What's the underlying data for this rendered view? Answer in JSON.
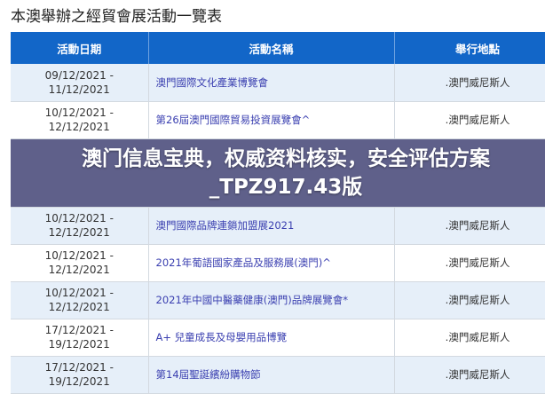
{
  "page_title": "本澳舉辦之經貿會展活動一覽表",
  "table": {
    "headers": [
      "活動日期",
      "活動名稱",
      "舉行地點"
    ],
    "rows": [
      {
        "start": "09/12/2021 -",
        "end": "11/12/2021",
        "name": "澳門國際文化產業博覽會",
        "location": ".澳門威尼斯人"
      },
      {
        "start": "10/12/2021 -",
        "end": "12/12/2021",
        "name": "第26屆澳門國際貿易投資展覽會^",
        "location": ".澳門威尼斯人"
      },
      {
        "start": "10/12/2021 -",
        "end": "12/12/2021",
        "name": "澳門國際品牌連鎖加盟展2021",
        "location": ".澳門威尼斯人"
      },
      {
        "start": "10/12/2021 -",
        "end": "12/12/2021",
        "name": "2021年葡語國家產品及服務展(澳門)^",
        "location": ".澳門威尼斯人"
      },
      {
        "start": "10/12/2021 -",
        "end": "12/12/2021",
        "name": "2021年中國中醫藥健康(澳門)品牌展覽會*",
        "location": ".澳門威尼斯人"
      },
      {
        "start": "17/12/2021 -",
        "end": "19/12/2021",
        "name": "A+ 兒童成長及母嬰用品博覽",
        "location": ".澳門威尼斯人"
      },
      {
        "start": "17/12/2021 -",
        "end": "19/12/2021",
        "name": "第14屆聖誕繽紛購物節",
        "location": ".澳門威尼斯人"
      }
    ]
  },
  "banner": {
    "line1": "澳门信息宝典，权威资料核实，安全评估方案",
    "line2": "_TPZ917.43版"
  },
  "colors": {
    "header_bg": "#1266c8",
    "link": "#3a3fb0",
    "alt_row": "#e6eff9"
  }
}
